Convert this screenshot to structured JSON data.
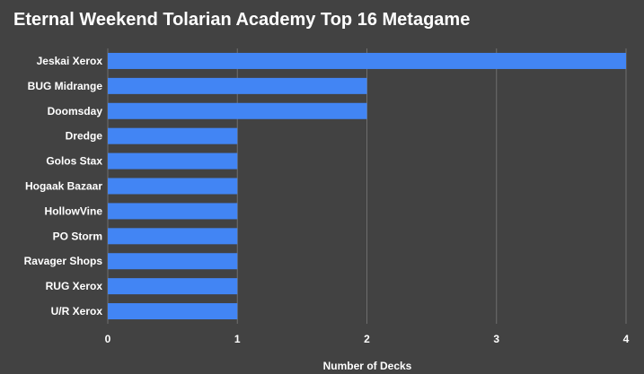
{
  "chart_data": {
    "type": "bar",
    "orientation": "horizontal",
    "title": "Eternal Weekend Tolarian Academy Top 16 Metagame",
    "xlabel": "Number of Decks",
    "ylabel": "",
    "categories": [
      "Jeskai Xerox",
      "BUG Midrange",
      "Doomsday",
      "Dredge",
      "Golos Stax",
      "Hogaak Bazaar",
      "HollowVine",
      "PO Storm",
      "Ravager Shops",
      "RUG Xerox",
      "U/R Xerox"
    ],
    "values": [
      4,
      2,
      2,
      1,
      1,
      1,
      1,
      1,
      1,
      1,
      1
    ],
    "xlim": [
      0,
      4
    ],
    "xticks": [
      "0",
      "1",
      "2",
      "3",
      "4"
    ],
    "grid": true,
    "legend": "none",
    "bar_color": "#4285f4",
    "background_color": "#424242",
    "grid_color": "#6e6e6e",
    "text_color": "#ffffff"
  }
}
